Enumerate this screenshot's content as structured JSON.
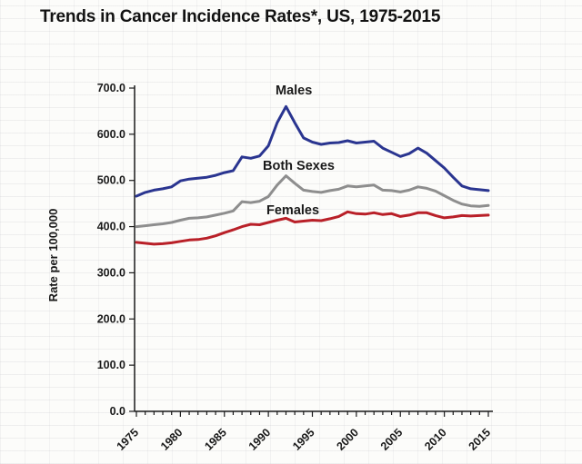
{
  "title": "Trends in Cancer Incidence Rates*, US, 1975-2015",
  "axis_color": "#1a1a1a",
  "chart_data": {
    "type": "line",
    "title": "Trends in Cancer Incidence Rates*, US, 1975-2015",
    "xlabel": "",
    "ylabel": "Rate per 100,000",
    "ylim": [
      0,
      700
    ],
    "xlim": [
      1975,
      2015
    ],
    "grid": false,
    "legend_position": "inline-labels",
    "y_ticks": [
      0,
      100,
      200,
      300,
      400,
      500,
      600,
      700
    ],
    "y_tick_labels": [
      "0.0",
      "100.0",
      "200.0",
      "300.0",
      "400.0",
      "500.0",
      "600.0",
      "700.0"
    ],
    "x_major_ticks": [
      1975,
      1980,
      1985,
      1990,
      1995,
      2000,
      2005,
      2010,
      2015
    ],
    "x_minor_step": 1,
    "x": [
      1975,
      1976,
      1977,
      1978,
      1979,
      1980,
      1981,
      1982,
      1983,
      1984,
      1985,
      1986,
      1987,
      1988,
      1989,
      1990,
      1991,
      1992,
      1993,
      1994,
      1995,
      1996,
      1997,
      1998,
      1999,
      2000,
      2001,
      2002,
      2003,
      2004,
      2005,
      2006,
      2007,
      2008,
      2009,
      2010,
      2011,
      2012,
      2013,
      2014,
      2015
    ],
    "series": [
      {
        "name": "Males",
        "color": "#2a3590",
        "values": [
          466,
          474,
          479,
          482,
          486,
          499,
          503,
          505,
          507,
          511,
          517,
          521,
          551,
          548,
          553,
          575,
          625,
          660,
          625,
          592,
          583,
          578,
          581,
          582,
          586,
          581,
          583,
          585,
          570,
          561,
          552,
          558,
          570,
          559,
          543,
          527,
          507,
          488,
          482,
          480,
          478
        ]
      },
      {
        "name": "Both Sexes",
        "color": "#8e8e8e",
        "values": [
          400,
          402,
          404,
          406,
          409,
          414,
          418,
          419,
          421,
          425,
          429,
          434,
          454,
          452,
          455,
          465,
          490,
          510,
          494,
          479,
          476,
          474,
          478,
          481,
          488,
          486,
          488,
          490,
          479,
          478,
          475,
          479,
          486,
          483,
          477,
          467,
          457,
          449,
          445,
          444,
          446
        ]
      },
      {
        "name": "Females",
        "color": "#b92028",
        "values": [
          366,
          364,
          362,
          363,
          365,
          368,
          371,
          372,
          375,
          380,
          387,
          393,
          400,
          405,
          404,
          409,
          414,
          418,
          410,
          412,
          414,
          413,
          417,
          422,
          432,
          428,
          427,
          430,
          426,
          428,
          422,
          425,
          430,
          430,
          424,
          419,
          421,
          424,
          423,
          424,
          425
        ]
      }
    ]
  }
}
